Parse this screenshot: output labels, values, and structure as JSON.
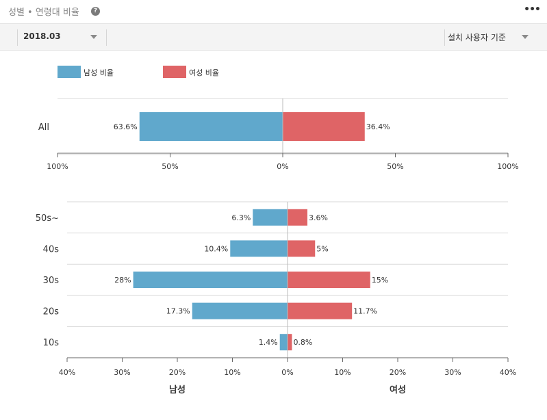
{
  "header": {
    "title": "성별 • 연령대 비율",
    "help_icon": "?",
    "more_icon": "•••"
  },
  "toolbar": {
    "date_value": "2018.03",
    "basis_value": "설치 사용자 기준"
  },
  "colors": {
    "male": "#60a8cc",
    "female": "#df6466"
  },
  "legend": {
    "male_label": "남성 비율",
    "female_label": "여성 비율"
  },
  "chart_data": [
    {
      "type": "bar",
      "orientation": "horizontal-diverging",
      "categories": [
        "All"
      ],
      "series": [
        {
          "name": "남성 비율",
          "values": [
            63.6
          ],
          "labels": [
            "63.6%"
          ]
        },
        {
          "name": "여성 비율",
          "values": [
            36.4
          ],
          "labels": [
            "36.4%"
          ]
        }
      ],
      "xlim": [
        -100,
        100
      ],
      "xticks": [
        "100%",
        "50%",
        "0%",
        "50%",
        "100%"
      ]
    },
    {
      "type": "bar",
      "orientation": "horizontal-diverging",
      "categories": [
        "50s~",
        "40s",
        "30s",
        "20s",
        "10s"
      ],
      "series": [
        {
          "name": "남성 비율",
          "values": [
            6.3,
            10.4,
            28,
            17.3,
            1.4
          ],
          "labels": [
            "6.3%",
            "10.4%",
            "28%",
            "17.3%",
            "1.4%"
          ]
        },
        {
          "name": "여성 비율",
          "values": [
            3.6,
            5,
            15,
            11.7,
            0.8
          ],
          "labels": [
            "3.6%",
            "5%",
            "15%",
            "11.7%",
            "0.8%"
          ]
        }
      ],
      "xlim": [
        -40,
        40
      ],
      "xticks": [
        "40%",
        "30%",
        "20%",
        "10%",
        "0%",
        "10%",
        "20%",
        "30%",
        "40%"
      ],
      "axis_titles": {
        "left": "남성",
        "right": "여성"
      }
    }
  ]
}
